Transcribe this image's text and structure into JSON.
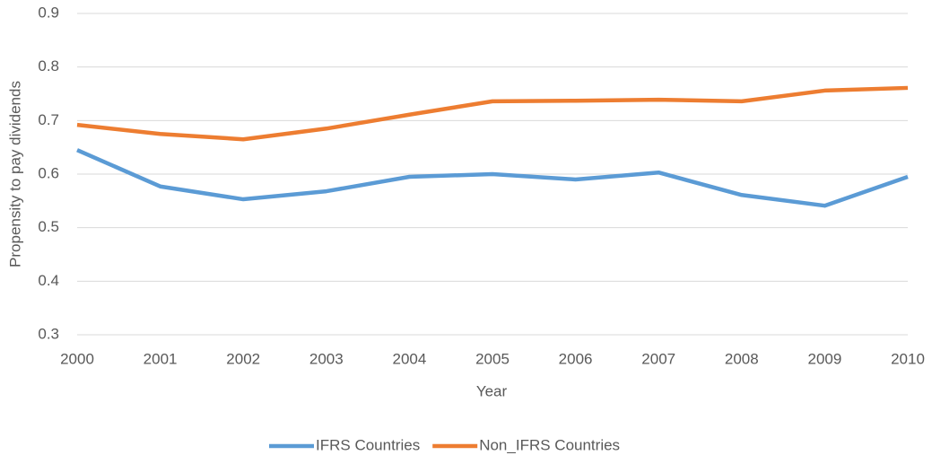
{
  "chart_data": {
    "type": "line",
    "x_label": "Year",
    "y_label": "Propensity to pay dividends",
    "x": [
      2000,
      2001,
      2002,
      2003,
      2004,
      2005,
      2006,
      2007,
      2008,
      2009,
      2010
    ],
    "series": [
      {
        "name": "IFRS Countries",
        "color": "#5b9bd5",
        "values": [
          0.645,
          0.577,
          0.553,
          0.568,
          0.595,
          0.6,
          0.59,
          0.603,
          0.561,
          0.541,
          0.595
        ]
      },
      {
        "name": "Non_IFRS Countries",
        "color": "#ed7d31",
        "values": [
          0.692,
          0.675,
          0.665,
          0.685,
          0.711,
          0.736,
          0.737,
          0.739,
          0.736,
          0.756,
          0.761
        ]
      }
    ],
    "xlim": [
      2000,
      2010
    ],
    "xticks": [
      2000,
      2001,
      2002,
      2003,
      2004,
      2005,
      2006,
      2007,
      2008,
      2009,
      2010
    ],
    "ylim": [
      0.3,
      0.9
    ],
    "yticks": [
      0.3,
      0.4,
      0.5,
      0.6,
      0.7,
      0.8,
      0.9
    ],
    "grid": true,
    "legend": "bottom"
  }
}
